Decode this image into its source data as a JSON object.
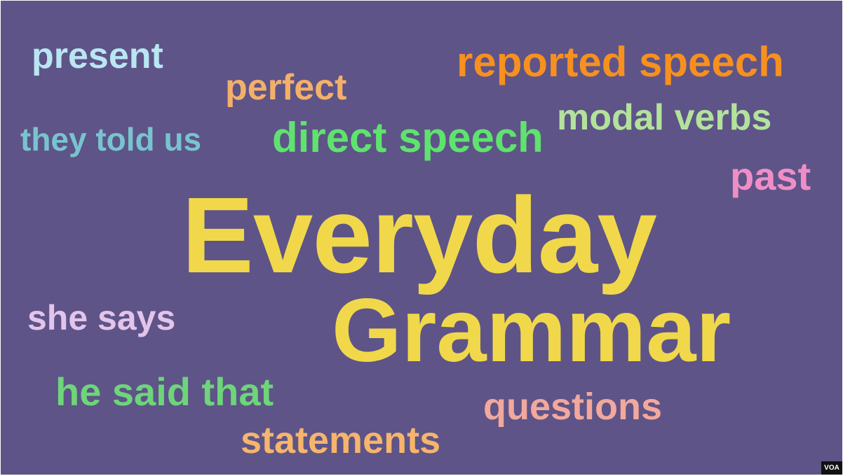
{
  "words": [
    {
      "text": "present",
      "color": "#b9e6f2"
    },
    {
      "text": "perfect",
      "color": "#f3b06a"
    },
    {
      "text": "reported speech",
      "color": "#f7901e"
    },
    {
      "text": "modal verbs",
      "color": "#b3e39b"
    },
    {
      "text": "they told us",
      "color": "#79c3cf"
    },
    {
      "text": "direct speech",
      "color": "#5fe36e"
    },
    {
      "text": "past",
      "color": "#ef8ec6"
    },
    {
      "text": "Everyday",
      "color": "#f1d84b"
    },
    {
      "text": "Grammar",
      "color": "#f1d84b"
    },
    {
      "text": "she says",
      "color": "#e3c4ea"
    },
    {
      "text": "he said that",
      "color": "#6ed57a"
    },
    {
      "text": "questions",
      "color": "#f2a89c"
    },
    {
      "text": "statements",
      "color": "#f6b56c"
    }
  ],
  "colors": {
    "background": "#5e5488"
  },
  "badge": "VOA"
}
